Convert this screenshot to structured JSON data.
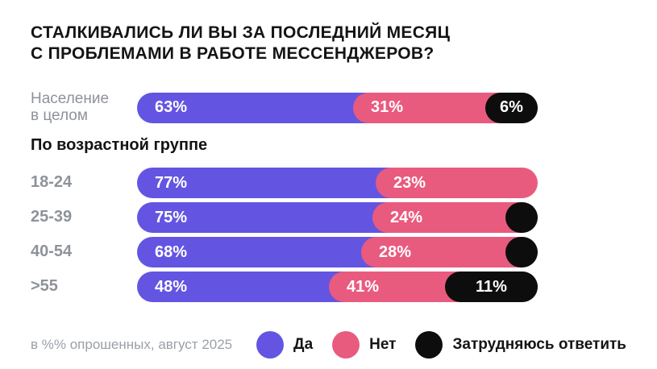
{
  "title": {
    "line1": "Сталкивались ли вы за последний месяц",
    "line2": "с проблемами в работе мессенджеров?"
  },
  "section_header": "По возрастной группе",
  "footnote": "в %% опрошенных, август 2025",
  "legend": [
    {
      "label": "Да",
      "color": "#6355E2"
    },
    {
      "label": "Нет",
      "color": "#E95A7F"
    },
    {
      "label": "Затрудняюсь ответить",
      "color": "#0D0D0D"
    }
  ],
  "colors": {
    "yes": "#6355E2",
    "no": "#E95A7F",
    "undecided": "#0D0D0D",
    "title_text": "#141414",
    "muted_label": "#8E929A",
    "footnote_text": "#9AA0A8",
    "background": "#FFFFFF"
  },
  "chart_data": {
    "type": "bar",
    "orientation": "horizontal",
    "stacked": true,
    "unit": "%",
    "grid": false,
    "legend_position": "bottom-right",
    "title": "Сталкивались ли вы за последний месяц с проблемами в работе мессенджеров?",
    "series_names": [
      "Да",
      "Нет",
      "Затрудняюсь ответить"
    ],
    "categories": [
      "Население в целом",
      "18-24",
      "25-39",
      "40-54",
      ">55"
    ],
    "rows": [
      {
        "group": "overall",
        "label": "Население в целом",
        "label_lines": [
          "Население",
          "в целом"
        ],
        "da": 63,
        "net": 31,
        "zo": 6,
        "zo_style": "labeled"
      },
      {
        "group": "age",
        "label": "18-24",
        "da": 77,
        "net": 23,
        "zo": null,
        "zo_style": "none"
      },
      {
        "group": "age",
        "label": "25-39",
        "da": 75,
        "net": 24,
        "zo": null,
        "zo_style": "dot"
      },
      {
        "group": "age",
        "label": "40-54",
        "da": 68,
        "net": 28,
        "zo": null,
        "zo_style": "dot"
      },
      {
        "group": "age",
        "label": ">55",
        "da": 48,
        "net": 41,
        "zo": 11,
        "zo_style": "labeled"
      }
    ]
  }
}
